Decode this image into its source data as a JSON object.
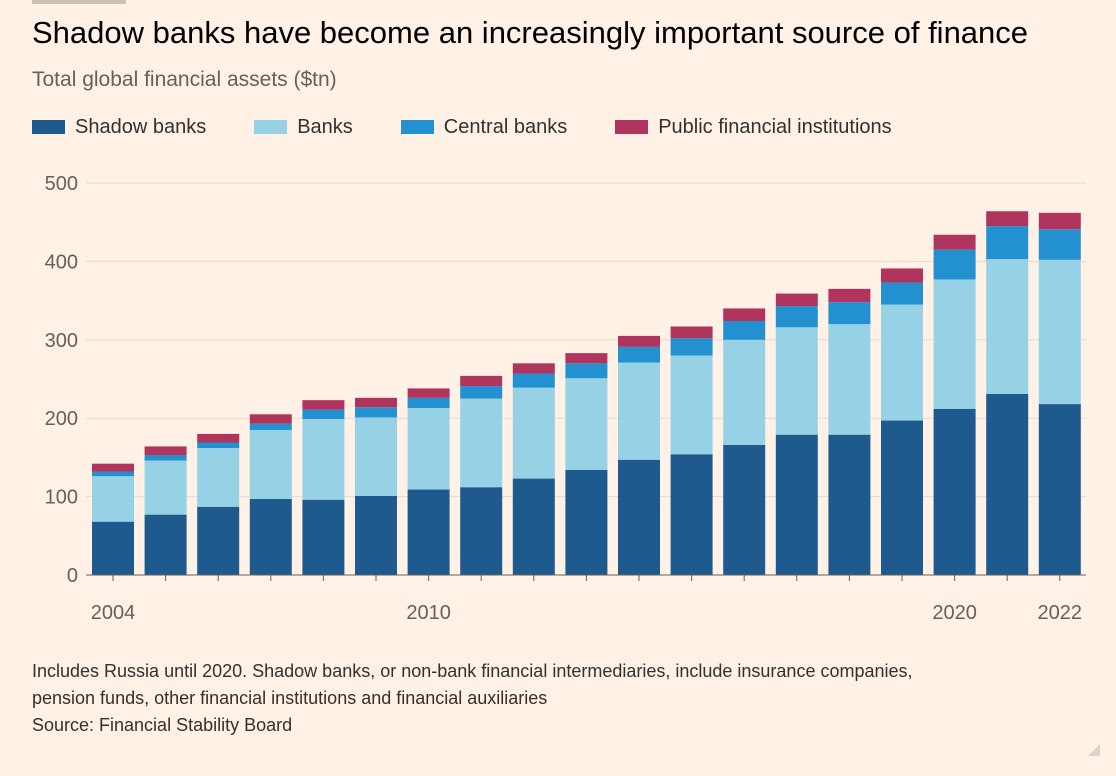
{
  "header": {
    "title": "Shadow banks have become an increasingly important source of finance",
    "subtitle": "Total global financial assets ($tn)"
  },
  "legend": [
    {
      "label": "Shadow banks",
      "color": "#1F5A8F"
    },
    {
      "label": "Banks",
      "color": "#96D1E6"
    },
    {
      "label": "Central banks",
      "color": "#2390CF"
    },
    {
      "label": "Public financial institutions",
      "color": "#B0355E"
    }
  ],
  "notes": {
    "line1": "Includes Russia until 2020. Shadow banks, or non-bank financial intermediaries, include insurance companies,",
    "line2": "pension funds, other financial institutions and financial auxiliaries",
    "source": "Source: Financial Stability Board"
  },
  "chart_data": {
    "type": "bar",
    "stacked": true,
    "title": "Shadow banks have become an increasingly important source of finance",
    "subtitle": "Total global financial assets ($tn)",
    "xlabel": "",
    "ylabel": "",
    "categories": [
      2004,
      2005,
      2006,
      2007,
      2008,
      2009,
      2010,
      2011,
      2012,
      2013,
      2014,
      2015,
      2016,
      2017,
      2018,
      2019,
      2020,
      2021,
      2022
    ],
    "x_tick_labels": [
      {
        "category": 2004,
        "label": "2004"
      },
      {
        "category": 2010,
        "label": "2010"
      },
      {
        "category": 2020,
        "label": "2020"
      },
      {
        "category": 2022,
        "label": "2022"
      }
    ],
    "ylim": [
      0,
      500
    ],
    "yticks": [
      0,
      100,
      200,
      300,
      400,
      500
    ],
    "grid": true,
    "legend_position": "top-left",
    "series": [
      {
        "name": "Shadow banks",
        "color": "#1F5A8F",
        "values": [
          68,
          77,
          87,
          97,
          96,
          101,
          109,
          112,
          123,
          134,
          147,
          154,
          166,
          179,
          179,
          197,
          212,
          231,
          218
        ]
      },
      {
        "name": "Banks",
        "color": "#96D1E6",
        "values": [
          58,
          69,
          75,
          88,
          103,
          100,
          104,
          113,
          116,
          117,
          124,
          126,
          134,
          137,
          141,
          148,
          165,
          172,
          184
        ]
      },
      {
        "name": "Central banks",
        "color": "#2390CF",
        "values": [
          6,
          7,
          7,
          8,
          12,
          13,
          13,
          16,
          18,
          19,
          20,
          22,
          24,
          27,
          28,
          28,
          38,
          42,
          39
        ]
      },
      {
        "name": "Public financial institutions",
        "color": "#B0355E",
        "values": [
          10,
          11,
          11,
          12,
          12,
          12,
          12,
          13,
          13,
          13,
          14,
          15,
          16,
          16,
          17,
          18,
          19,
          19,
          21
        ]
      }
    ]
  }
}
